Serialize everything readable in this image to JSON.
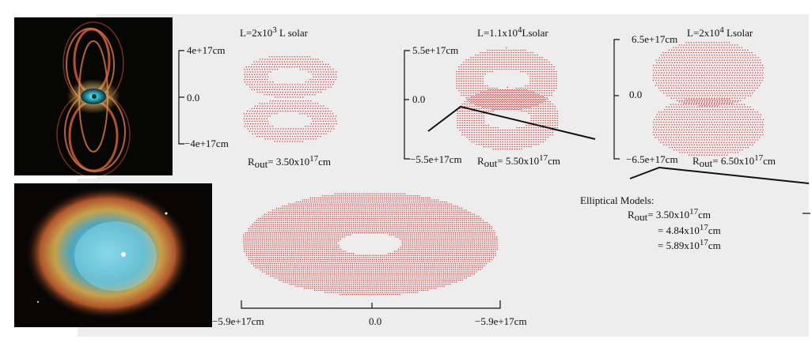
{
  "colors": {
    "particle": "#e8211f",
    "panel_bg": "#ededed",
    "axis": "#111111"
  },
  "models": [
    {
      "luminosity": {
        "prefix": "L=2x10",
        "exp": "3",
        "suffix": " L solar"
      },
      "axis_top": "4e+17cm",
      "axis_mid": "0.0",
      "axis_bottom": "−4e+17cm",
      "radius": {
        "label": "R",
        "sub": "out",
        "value": "= 3.50x10",
        "exp": "17",
        "unit": "cm"
      }
    },
    {
      "luminosity": {
        "prefix": "L=1.1x10",
        "exp": "4",
        "suffix": "Lsolar"
      },
      "axis_top": "5.5e+17cm",
      "axis_mid": "0.0",
      "axis_bottom": "−5.5e+17cm",
      "radius": {
        "label": "R",
        "sub": "out",
        "value": "= 5.50x10",
        "exp": "17",
        "unit": "cm"
      }
    },
    {
      "luminosity": {
        "prefix": "L=2x10",
        "exp": "4",
        "suffix": " Lsolar"
      },
      "axis_top": "6.5e+17cm",
      "axis_mid": "0.0",
      "axis_bottom": "−6.5e+17cm",
      "radius": {
        "label": "R",
        "sub": "out",
        "value": "= 6.50x10",
        "exp": "17",
        "unit": "cm"
      }
    }
  ],
  "elliptical": {
    "title": "Elliptical Models:",
    "label": "R",
    "sub": "out",
    "values": [
      {
        "value": "= 3.50x10",
        "exp": "17",
        "unit": "cm"
      },
      {
        "value": "= 4.84x10",
        "exp": "17",
        "unit": "cm"
      },
      {
        "value": "= 5.89x10",
        "exp": "17",
        "unit": "cm"
      }
    ]
  },
  "bottom_axis": {
    "left": "−5.9e+17cm",
    "mid": "0.0",
    "right": "−5.9e+17cm"
  }
}
